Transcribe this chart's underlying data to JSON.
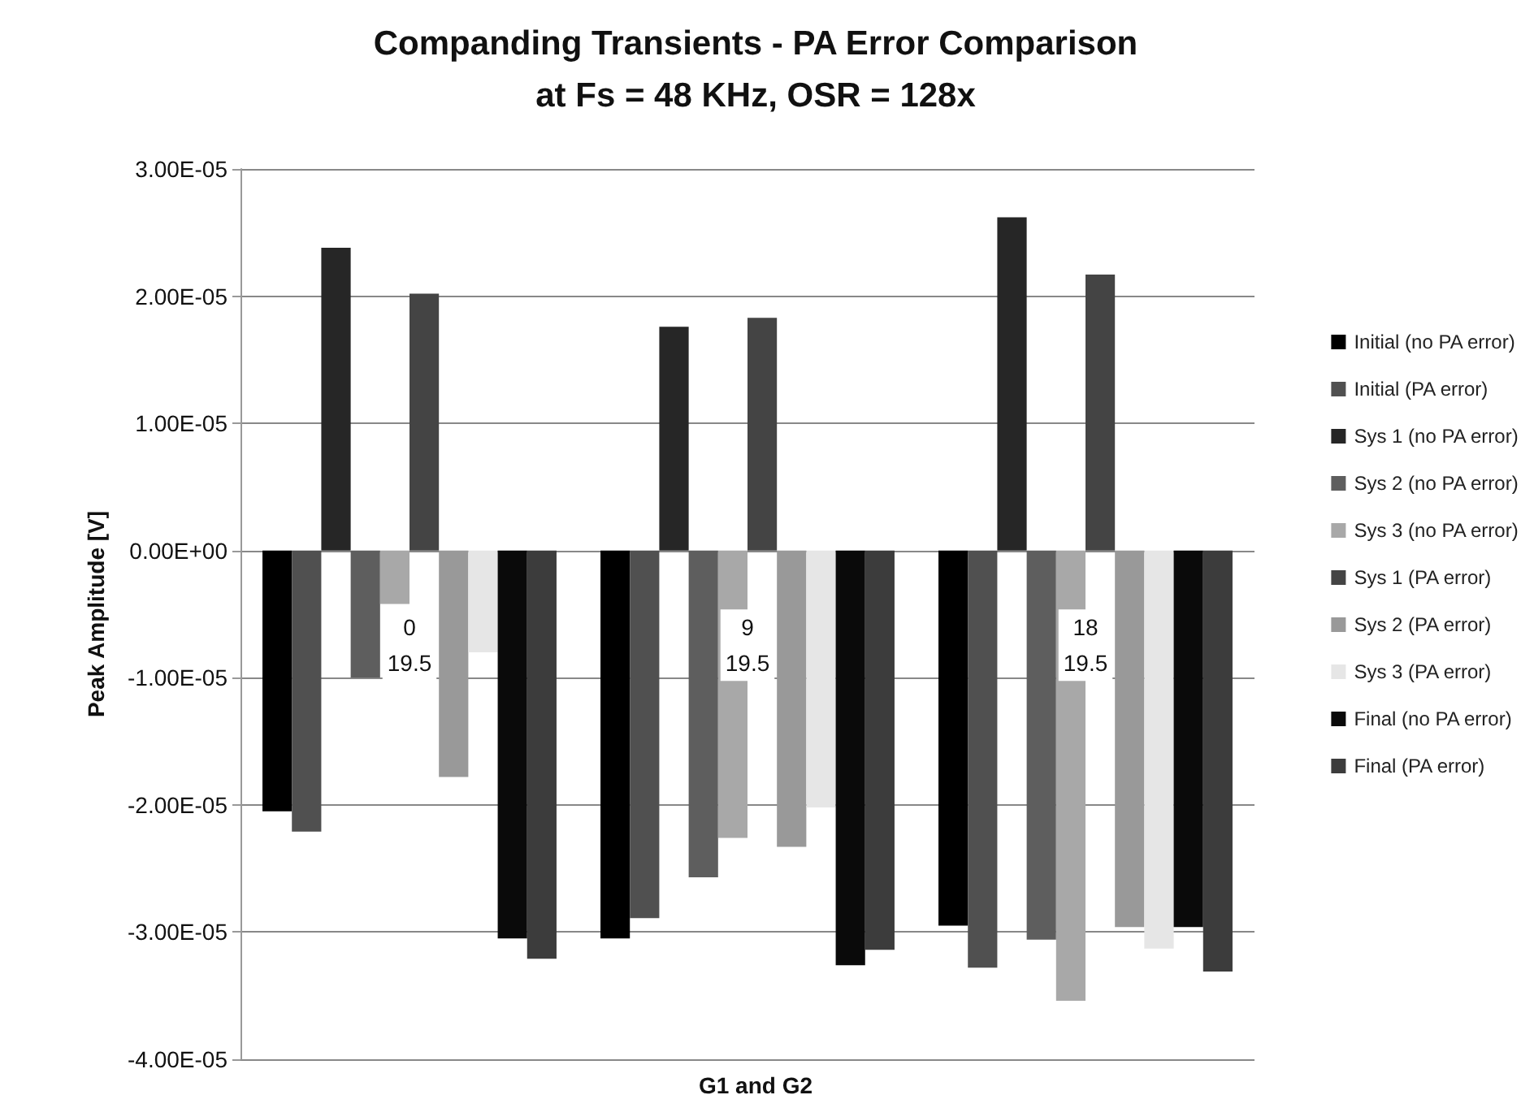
{
  "chart_data": {
    "type": "bar",
    "title": "Companding Transients - PA Error Comparison\nat Fs = 48 KHz, OSR = 128x",
    "xlabel": "G1 and G2",
    "ylabel": "Peak Amplitude [V]",
    "categories": [
      "0\n19.5",
      "9\n19.5",
      "18\n19.5"
    ],
    "series": [
      {
        "name": "Initial (no PA error)",
        "color": "#000000",
        "values": [
          -2.05e-05,
          -3.05e-05,
          -2.95e-05
        ]
      },
      {
        "name": "Initial (PA error)",
        "color": "#505050",
        "values": [
          -2.21e-05,
          -2.89e-05,
          -3.28e-05
        ]
      },
      {
        "name": "Sys 1 (no PA error)",
        "color": "#262626",
        "values": [
          2.38e-05,
          1.76e-05,
          2.62e-05
        ]
      },
      {
        "name": "Sys 2 (no PA error)",
        "color": "#5e5e5e",
        "values": [
          -1e-05,
          -2.57e-05,
          -3.06e-05
        ]
      },
      {
        "name": "Sys 3 (no PA error)",
        "color": "#a8a8a8",
        "values": [
          -4.2e-06,
          -2.26e-05,
          -3.54e-05
        ]
      },
      {
        "name": "Sys 1 (PA error)",
        "color": "#444444",
        "values": [
          2.02e-05,
          1.83e-05,
          2.17e-05
        ]
      },
      {
        "name": "Sys 2 (PA error)",
        "color": "#999999",
        "values": [
          -1.78e-05,
          -2.33e-05,
          -2.96e-05
        ]
      },
      {
        "name": "Sys 3 (PA error)",
        "color": "#e6e6e6",
        "values": [
          -8e-06,
          -2.02e-05,
          -3.13e-05
        ]
      },
      {
        "name": "Final (no PA error)",
        "color": "#0a0a0a",
        "values": [
          -3.05e-05,
          -3.26e-05,
          -2.96e-05
        ]
      },
      {
        "name": "Final (PA error)",
        "color": "#3c3c3c",
        "values": [
          -3.21e-05,
          -3.14e-05,
          -3.31e-05
        ]
      }
    ],
    "ylim": [
      -4e-05,
      3e-05
    ],
    "yticks": [
      {
        "value": -4e-05,
        "label": "-4.00E-05"
      },
      {
        "value": -3e-05,
        "label": "-3.00E-05"
      },
      {
        "value": -2e-05,
        "label": "-2.00E-05"
      },
      {
        "value": -1e-05,
        "label": "-1.00E-05"
      },
      {
        "value": 0,
        "label": "0.00E+00"
      },
      {
        "value": 1e-05,
        "label": "1.00E-05"
      },
      {
        "value": 2e-05,
        "label": "2.00E-05"
      },
      {
        "value": 3e-05,
        "label": "3.00E-05"
      }
    ],
    "grid": "y",
    "legend": "right"
  }
}
